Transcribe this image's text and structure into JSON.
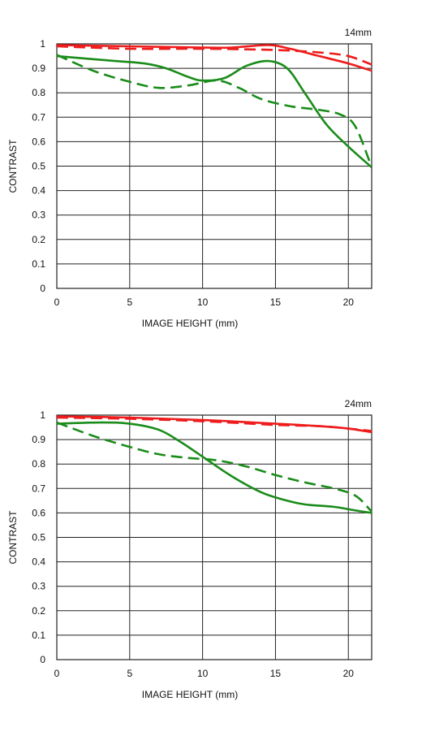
{
  "chart_data": [
    {
      "type": "line",
      "title": "14mm",
      "xlabel": "IMAGE HEIGHT (mm)",
      "ylabel": "CONTRAST",
      "xlim": [
        0,
        21.6
      ],
      "ylim": [
        0,
        1
      ],
      "xticks": [
        0,
        5,
        10,
        15,
        20
      ],
      "yticks": [
        0,
        0.1,
        0.2,
        0.3,
        0.4,
        0.5,
        0.6,
        0.7,
        0.8,
        0.9,
        1
      ],
      "ytick_labels": [
        "0",
        "0.1",
        "0.2",
        "0.3",
        "0.4",
        "0.5",
        "0.6",
        "0.7",
        "0.8",
        "0.9",
        "1"
      ],
      "grid": true,
      "series": [
        {
          "color": "#ee1c1c",
          "dash": "solid",
          "points": [
            [
              0,
              0.995
            ],
            [
              5,
              0.99
            ],
            [
              10,
              0.985
            ],
            [
              12,
              0.985
            ],
            [
              14.5,
              0.995
            ],
            [
              16,
              0.98
            ],
            [
              18,
              0.95
            ],
            [
              20,
              0.92
            ],
            [
              21.6,
              0.89
            ]
          ]
        },
        {
          "color": "#ee1c1c",
          "dash": "dashed",
          "points": [
            [
              0,
              0.99
            ],
            [
              5,
              0.98
            ],
            [
              10,
              0.98
            ],
            [
              15,
              0.975
            ],
            [
              18,
              0.965
            ],
            [
              20,
              0.95
            ],
            [
              21.6,
              0.915
            ]
          ]
        },
        {
          "color": "#1a8c1a",
          "dash": "solid",
          "points": [
            [
              0,
              0.95
            ],
            [
              4,
              0.93
            ],
            [
              6,
              0.92
            ],
            [
              7.5,
              0.9
            ],
            [
              9,
              0.865
            ],
            [
              10,
              0.85
            ],
            [
              11.5,
              0.86
            ],
            [
              13,
              0.91
            ],
            [
              14.5,
              0.93
            ],
            [
              15.8,
              0.9
            ],
            [
              17,
              0.8
            ],
            [
              18.5,
              0.67
            ],
            [
              20,
              0.58
            ],
            [
              21.6,
              0.495
            ]
          ]
        },
        {
          "color": "#1a8c1a",
          "dash": "dashed",
          "points": [
            [
              0,
              0.955
            ],
            [
              2.5,
              0.89
            ],
            [
              5,
              0.845
            ],
            [
              7,
              0.82
            ],
            [
              9,
              0.83
            ],
            [
              11,
              0.85
            ],
            [
              12.5,
              0.82
            ],
            [
              14,
              0.775
            ],
            [
              16,
              0.745
            ],
            [
              18,
              0.73
            ],
            [
              19.5,
              0.71
            ],
            [
              20.5,
              0.66
            ],
            [
              21.6,
              0.495
            ]
          ]
        }
      ]
    },
    {
      "type": "line",
      "title": "24mm",
      "xlabel": "IMAGE HEIGHT (mm)",
      "ylabel": "CONTRAST",
      "xlim": [
        0,
        21.6
      ],
      "ylim": [
        0,
        1
      ],
      "xticks": [
        0,
        5,
        10,
        15,
        20
      ],
      "yticks": [
        0,
        0.1,
        0.2,
        0.3,
        0.4,
        0.5,
        0.6,
        0.7,
        0.8,
        0.9,
        1
      ],
      "ytick_labels": [
        "0",
        "0.1",
        "0.2",
        "0.3",
        "0.4",
        "0.5",
        "0.6",
        "0.7",
        "0.8",
        "0.9",
        "1"
      ],
      "grid": true,
      "series": [
        {
          "color": "#ee1c1c",
          "dash": "solid",
          "points": [
            [
              0,
              0.995
            ],
            [
              5,
              0.99
            ],
            [
              10,
              0.98
            ],
            [
              15,
              0.965
            ],
            [
              18,
              0.955
            ],
            [
              20,
              0.945
            ],
            [
              21.6,
              0.93
            ]
          ]
        },
        {
          "color": "#ee1c1c",
          "dash": "dashed",
          "points": [
            [
              0,
              0.99
            ],
            [
              5,
              0.985
            ],
            [
              10,
              0.975
            ],
            [
              15,
              0.96
            ],
            [
              18,
              0.955
            ],
            [
              20,
              0.945
            ],
            [
              21.6,
              0.935
            ]
          ]
        },
        {
          "color": "#1a8c1a",
          "dash": "solid",
          "points": [
            [
              0,
              0.965
            ],
            [
              3,
              0.97
            ],
            [
              5,
              0.965
            ],
            [
              7,
              0.94
            ],
            [
              8.5,
              0.89
            ],
            [
              10,
              0.83
            ],
            [
              12,
              0.75
            ],
            [
              14,
              0.685
            ],
            [
              15.5,
              0.655
            ],
            [
              17,
              0.635
            ],
            [
              19,
              0.625
            ],
            [
              20.5,
              0.61
            ],
            [
              21.6,
              0.6
            ]
          ]
        },
        {
          "color": "#1a8c1a",
          "dash": "dashed",
          "points": [
            [
              0,
              0.97
            ],
            [
              2.5,
              0.915
            ],
            [
              5,
              0.87
            ],
            [
              7,
              0.84
            ],
            [
              9,
              0.825
            ],
            [
              11,
              0.815
            ],
            [
              13,
              0.79
            ],
            [
              15,
              0.755
            ],
            [
              17,
              0.725
            ],
            [
              19,
              0.7
            ],
            [
              20.5,
              0.67
            ],
            [
              21.6,
              0.605
            ]
          ]
        }
      ]
    }
  ]
}
